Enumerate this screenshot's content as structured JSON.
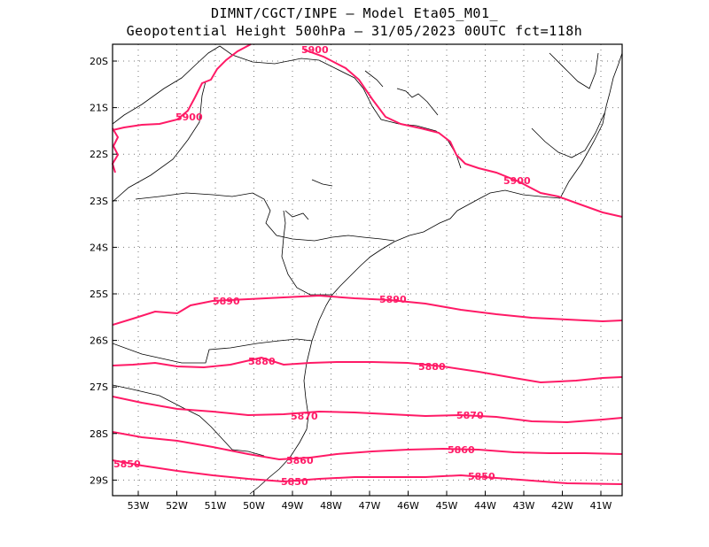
{
  "title_line1": "DIMNT/CGCT/INPE –  Model Eta05_M01_",
  "title_line2": "Geopotential Height 500hPa –  31/05/2023 00UTC fct=118h",
  "colors": {
    "contour": "#ff1a66",
    "coast": "#000000",
    "grid": "#777777"
  },
  "lon_labels": [
    "53W",
    "52W",
    "51W",
    "50W",
    "49W",
    "48W",
    "47W",
    "46W",
    "45W",
    "44W",
    "43W",
    "42W",
    "41W"
  ],
  "lat_labels": [
    "20S",
    "21S",
    "22S",
    "23S",
    "24S",
    "25S",
    "26S",
    "27S",
    "28S",
    "29S"
  ],
  "contour_labels": {
    "c5900a": "5900",
    "c5900b": "5900",
    "c5900c": "5900",
    "c5890a": "5890",
    "c5890b": "5890",
    "c5880a": "5880",
    "c5880b": "5880",
    "c5870a": "5870",
    "c5870b": "5870",
    "c5860a": "5860",
    "c5860b": "5860",
    "c5850a": "5850",
    "c5850b": "5850",
    "c5850c": "5850"
  }
}
